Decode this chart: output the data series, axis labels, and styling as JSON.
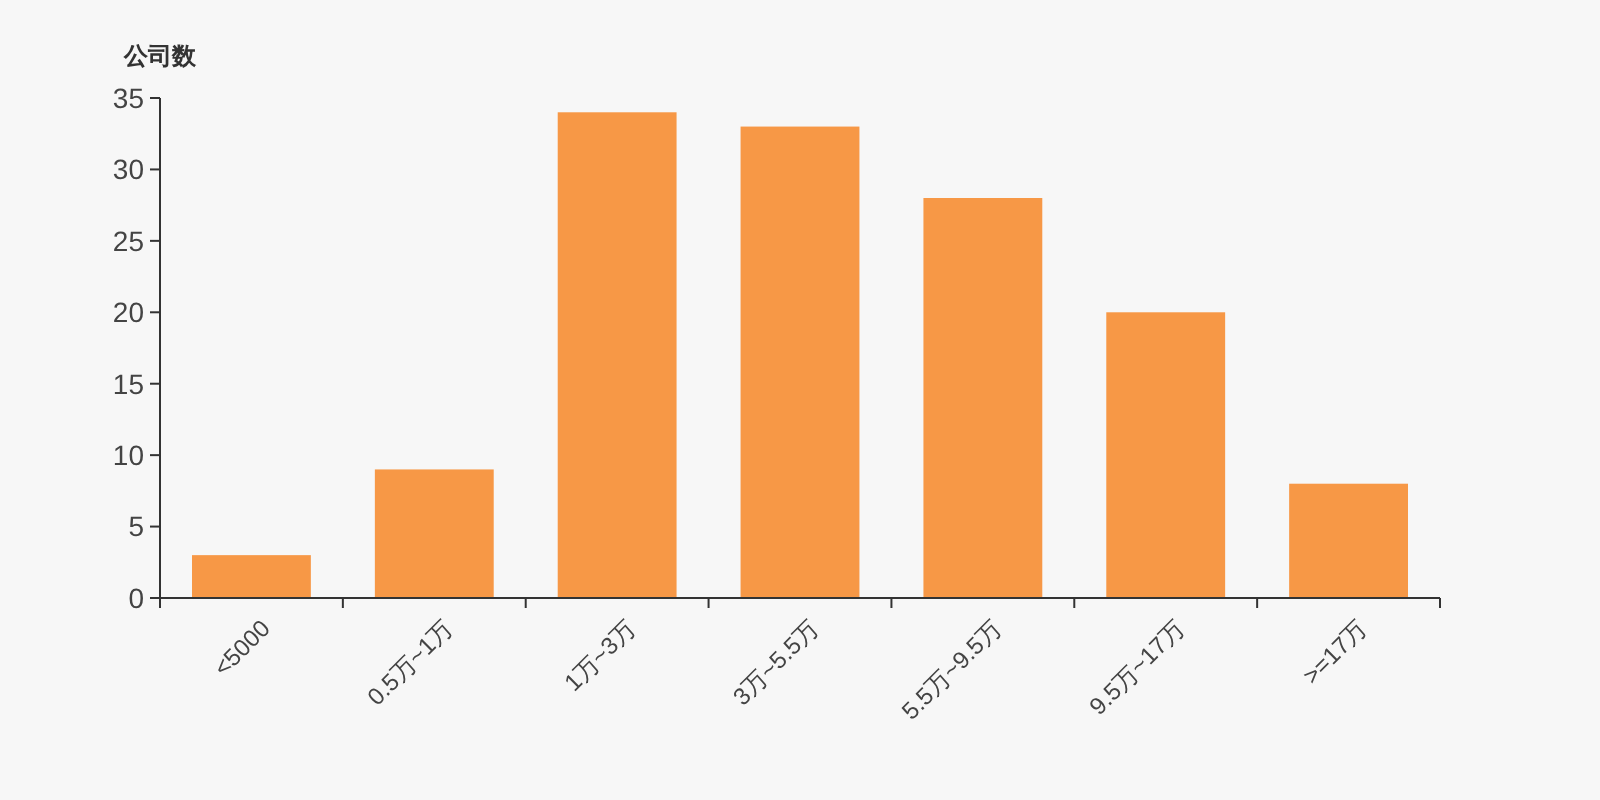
{
  "chart_data": {
    "type": "bar",
    "ylabel": "公司数",
    "categories": [
      "<5000",
      "0.5万~1万",
      "1万~3万",
      "3万~5.5万",
      "5.5万~9.5万",
      "9.5万~17万",
      ">=17万"
    ],
    "values": [
      3,
      9,
      34,
      33,
      28,
      20,
      8
    ],
    "color": "#f79846",
    "ylim": [
      0,
      35
    ],
    "yticks": [
      0,
      5,
      10,
      15,
      20,
      25,
      30,
      35
    ],
    "grid": false
  }
}
